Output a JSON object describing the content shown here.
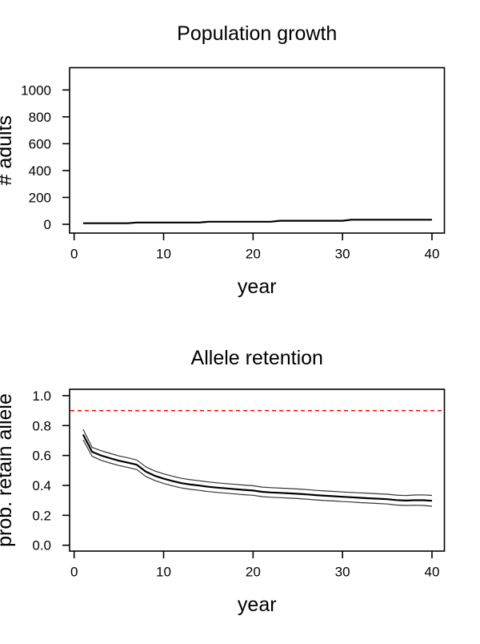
{
  "figure": {
    "background": "#ffffff",
    "axis_color": "#000000",
    "text_color": "#000000"
  },
  "chart_data": [
    {
      "id": "population-growth",
      "type": "line",
      "title": "Population growth",
      "xlabel": "year",
      "ylabel": "# adults",
      "x_ticks": {
        "values": [
          0,
          10,
          20,
          30,
          40
        ],
        "labels": [
          "0",
          "10",
          "20",
          "30",
          "40"
        ]
      },
      "y_ticks": {
        "values": [
          0,
          200,
          400,
          600,
          800,
          1000
        ],
        "labels": [
          "0",
          "200",
          "400",
          "600",
          "800",
          "1000"
        ]
      },
      "xlim": [
        -0.51,
        41.39
      ],
      "ylim": [
        -65.6,
        1165.9
      ],
      "grid": false,
      "legend": "none",
      "series": [
        {
          "name": "population",
          "color": "#000000",
          "width": 2.2,
          "x": [
            1,
            2,
            3,
            4,
            5,
            6,
            7,
            8,
            9,
            10,
            11,
            12,
            13,
            14,
            15,
            16,
            17,
            18,
            19,
            20,
            21,
            22,
            23,
            24,
            25,
            26,
            27,
            28,
            29,
            30,
            31,
            32,
            33,
            34,
            35,
            36,
            37,
            38,
            39,
            40
          ],
          "y": [
            8,
            8,
            8,
            8,
            8,
            8,
            13,
            13,
            13,
            13,
            13,
            13,
            13,
            13,
            19,
            19,
            19,
            19,
            19,
            19,
            19,
            19,
            26,
            26,
            26,
            26,
            26,
            26,
            26,
            26,
            34,
            34,
            34,
            34,
            34,
            34,
            34,
            34,
            34,
            34
          ]
        }
      ]
    },
    {
      "id": "allele-retention",
      "type": "line",
      "title": "Allele retention",
      "xlabel": "year",
      "ylabel": "prob. retain allele",
      "x_ticks": {
        "values": [
          0,
          10,
          20,
          30,
          40
        ],
        "labels": [
          "0",
          "10",
          "20",
          "30",
          "40"
        ]
      },
      "y_ticks": {
        "values": [
          0.0,
          0.2,
          0.4,
          0.6,
          0.8,
          1.0
        ],
        "labels": [
          "0.0",
          "0.2",
          "0.4",
          "0.6",
          "0.8",
          "1.0"
        ]
      },
      "xlim": [
        -0.51,
        41.39
      ],
      "ylim": [
        -0.039,
        1.0425
      ],
      "grid": false,
      "legend": "none",
      "reference_line": {
        "y": 0.9,
        "color": "#ff0000",
        "style": "dashed",
        "width": 1.4,
        "dash": "5 4"
      },
      "series": [
        {
          "name": "mean",
          "color": "#000000",
          "width": 2.2,
          "x": [
            1,
            2,
            3,
            4,
            5,
            6,
            7,
            8,
            9,
            10,
            11,
            12,
            13,
            14,
            15,
            16,
            17,
            18,
            19,
            20,
            21,
            22,
            23,
            24,
            25,
            26,
            27,
            28,
            29,
            30,
            31,
            32,
            33,
            34,
            35,
            36,
            37,
            38,
            39,
            40
          ],
          "y": [
            0.74,
            0.625,
            0.6,
            0.582,
            0.565,
            0.552,
            0.538,
            0.492,
            0.465,
            0.445,
            0.429,
            0.415,
            0.406,
            0.399,
            0.391,
            0.385,
            0.38,
            0.375,
            0.37,
            0.366,
            0.357,
            0.353,
            0.35,
            0.347,
            0.344,
            0.34,
            0.335,
            0.331,
            0.328,
            0.324,
            0.321,
            0.317,
            0.314,
            0.311,
            0.308,
            0.302,
            0.299,
            0.301,
            0.301,
            0.297
          ]
        },
        {
          "name": "upper_band",
          "color": "#333333",
          "width": 1.2,
          "x": [
            1,
            2,
            3,
            4,
            5,
            6,
            7,
            8,
            9,
            10,
            11,
            12,
            13,
            14,
            15,
            16,
            17,
            18,
            19,
            20,
            21,
            22,
            23,
            24,
            25,
            26,
            27,
            28,
            29,
            30,
            31,
            32,
            33,
            34,
            35,
            36,
            37,
            38,
            39,
            40
          ],
          "y": [
            0.775,
            0.655,
            0.632,
            0.614,
            0.597,
            0.584,
            0.57,
            0.524,
            0.497,
            0.477,
            0.461,
            0.447,
            0.438,
            0.431,
            0.423,
            0.417,
            0.412,
            0.407,
            0.402,
            0.398,
            0.389,
            0.385,
            0.382,
            0.379,
            0.376,
            0.372,
            0.367,
            0.363,
            0.36,
            0.356,
            0.353,
            0.35,
            0.347,
            0.344,
            0.341,
            0.335,
            0.332,
            0.336,
            0.337,
            0.333
          ]
        },
        {
          "name": "lower_band",
          "color": "#333333",
          "width": 1.2,
          "x": [
            1,
            2,
            3,
            4,
            5,
            6,
            7,
            8,
            9,
            10,
            11,
            12,
            13,
            14,
            15,
            16,
            17,
            18,
            19,
            20,
            21,
            22,
            23,
            24,
            25,
            26,
            27,
            28,
            29,
            30,
            31,
            32,
            33,
            34,
            35,
            36,
            37,
            38,
            39,
            40
          ],
          "y": [
            0.705,
            0.595,
            0.568,
            0.55,
            0.533,
            0.52,
            0.506,
            0.46,
            0.433,
            0.413,
            0.397,
            0.383,
            0.374,
            0.367,
            0.359,
            0.353,
            0.348,
            0.343,
            0.338,
            0.334,
            0.325,
            0.321,
            0.318,
            0.315,
            0.312,
            0.308,
            0.303,
            0.299,
            0.296,
            0.292,
            0.289,
            0.285,
            0.282,
            0.279,
            0.276,
            0.269,
            0.266,
            0.267,
            0.266,
            0.261
          ]
        }
      ]
    }
  ]
}
